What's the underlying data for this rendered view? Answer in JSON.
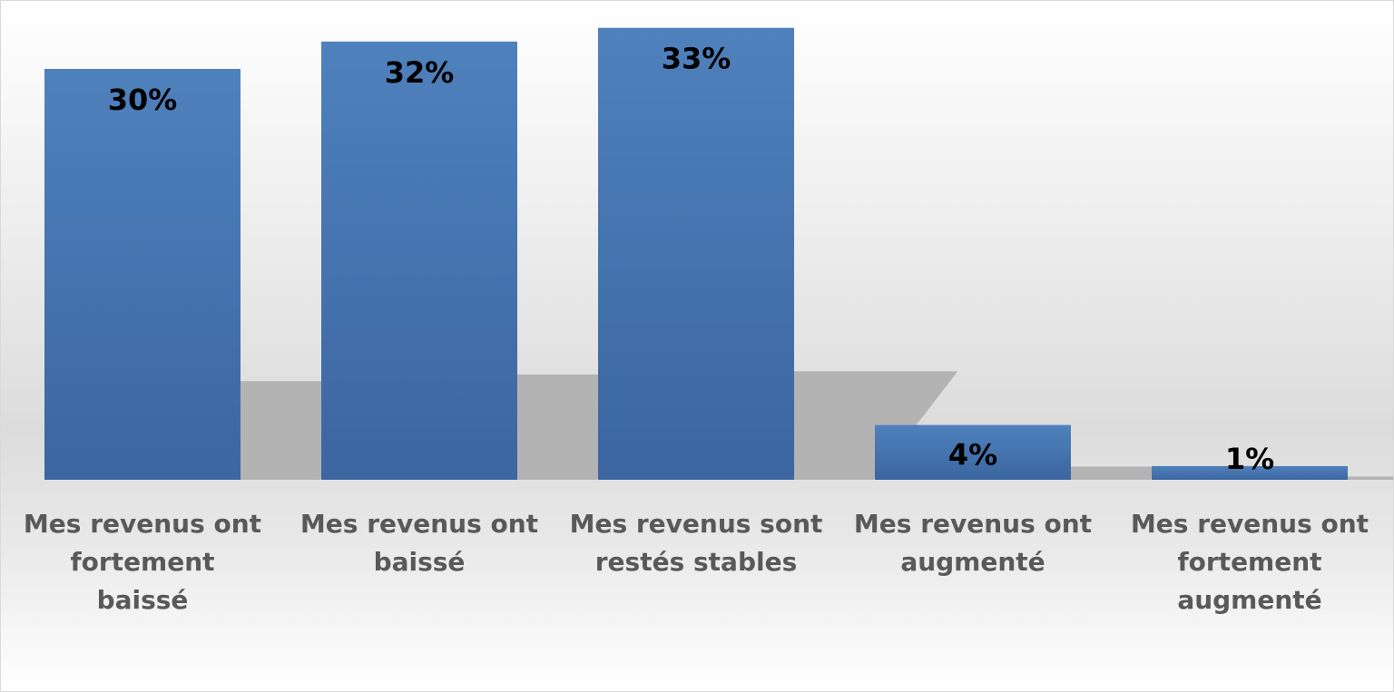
{
  "chart_data": {
    "type": "bar",
    "categories": [
      "Mes revenus ont fortement baissé",
      "Mes revenus ont baissé",
      "Mes revenus sont restés stables",
      "Mes revenus ont augmenté",
      "Mes revenus ont fortement augmenté"
    ],
    "category_lines": [
      [
        "Mes revenus ont",
        "fortement",
        "baissé"
      ],
      [
        "Mes revenus ont",
        "baissé"
      ],
      [
        "Mes revenus sont",
        "restés stables"
      ],
      [
        "Mes revenus ont",
        "augmenté"
      ],
      [
        "Mes revenus ont",
        "fortement",
        "augmenté"
      ]
    ],
    "values": [
      30,
      32,
      33,
      4,
      1
    ],
    "data_labels": [
      "30%",
      "32%",
      "33%",
      "4%",
      "1%"
    ],
    "unit": "%",
    "title": "",
    "xlabel": "",
    "ylabel": "",
    "ylim": [
      0,
      35
    ],
    "grid": false,
    "legend": "none",
    "colors": {
      "bar_top": "#4f81bd",
      "bar_bottom": "#3b66a0",
      "shadow": "#b3b3b3",
      "data_label": "#000000",
      "category_label": "#595959"
    }
  }
}
